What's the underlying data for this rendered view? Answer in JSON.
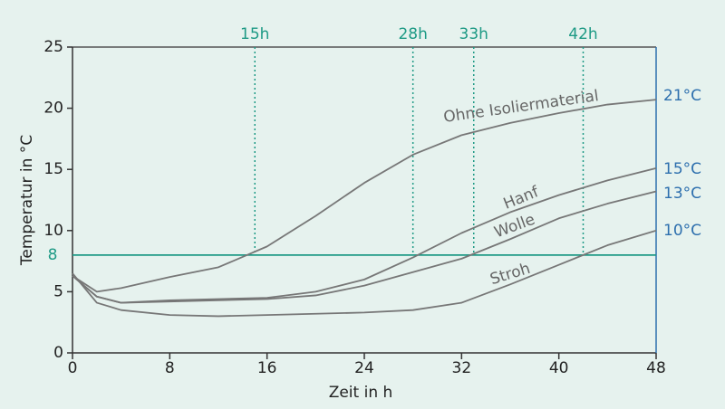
{
  "chart_data": {
    "type": "line",
    "xlabel": "Zeit in h",
    "ylabel": "Temperatur in °C",
    "x": [
      0,
      2,
      4,
      8,
      12,
      16,
      20,
      24,
      28,
      32,
      36,
      40,
      44,
      48
    ],
    "series": [
      {
        "name": "Ohne Isoliermaterial",
        "color": "#777777",
        "values": [
          6.3,
          5.0,
          5.3,
          6.2,
          7.0,
          8.7,
          11.2,
          13.9,
          16.2,
          17.8,
          18.8,
          19.6,
          20.3,
          20.7
        ]
      },
      {
        "name": "Hanf",
        "color": "#777777",
        "values": [
          6.3,
          4.6,
          4.1,
          4.3,
          4.4,
          4.5,
          5.0,
          6.0,
          7.8,
          9.8,
          11.5,
          12.9,
          14.1,
          15.1
        ]
      },
      {
        "name": "Wolle",
        "color": "#777777",
        "values": [
          6.3,
          4.6,
          4.1,
          4.2,
          4.3,
          4.4,
          4.7,
          5.5,
          6.6,
          7.7,
          9.3,
          11.0,
          12.2,
          13.2
        ]
      },
      {
        "name": "Stroh",
        "color": "#777777",
        "values": [
          6.5,
          4.1,
          3.5,
          3.1,
          3.0,
          3.1,
          3.2,
          3.3,
          3.5,
          4.1,
          5.6,
          7.2,
          8.8,
          10.0
        ]
      }
    ],
    "xlim": [
      0,
      48
    ],
    "xticks": [
      0,
      8,
      16,
      24,
      32,
      40,
      48
    ],
    "ylim": [
      0,
      25
    ],
    "yticks": [
      0,
      5,
      10,
      15,
      20,
      25
    ],
    "threshold": 8,
    "time_markers": [
      {
        "value": 15,
        "label": "15h"
      },
      {
        "value": 28,
        "label": "28h"
      },
      {
        "value": 33,
        "label": "33h"
      },
      {
        "value": 42,
        "label": "42h"
      }
    ],
    "end_labels": [
      {
        "value": 21,
        "label": "21°C"
      },
      {
        "value": 15,
        "label": "15°C"
      },
      {
        "value": 13,
        "label": "13°C"
      },
      {
        "value": 10,
        "label": "10°C"
      }
    ]
  }
}
